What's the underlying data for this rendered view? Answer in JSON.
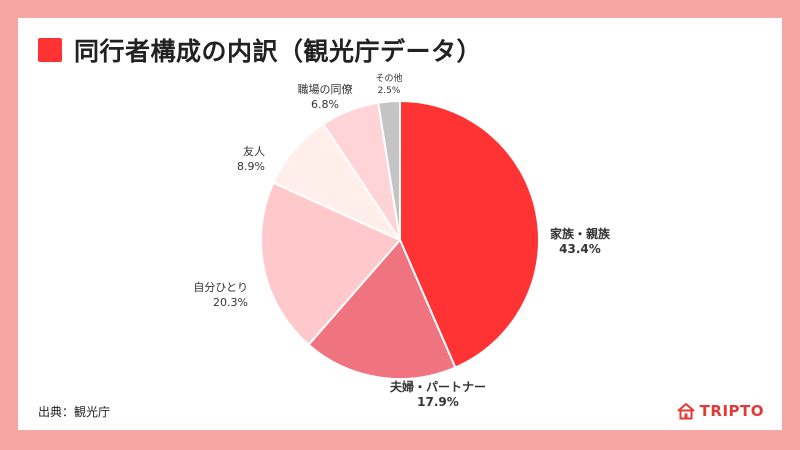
{
  "header": {
    "title": "同行者構成の内訳（観光庁データ）"
  },
  "footer": {
    "source": "出典：観光庁",
    "brand": "TRIPTO"
  },
  "colors": {
    "background": "#f8a5a5",
    "accent": "#ff3333",
    "brand": "#e53935"
  },
  "icons": {
    "brand": "house-icon"
  },
  "chart_data": {
    "type": "pie",
    "title": "同行者構成の内訳（観光庁データ）",
    "start": "12 o'clock",
    "direction": "clockwise",
    "slices": [
      {
        "label": "家族・親族",
        "value": 43.4,
        "value_label": "43.4%",
        "color": "#ff3333"
      },
      {
        "label": "夫婦・パートナー",
        "value": 17.9,
        "value_label": "17.9%",
        "color": "#f07480"
      },
      {
        "label": "自分ひとり",
        "value": 20.3,
        "value_label": "20.3%",
        "color": "#ffc9cc"
      },
      {
        "label": "友人",
        "value": 8.9,
        "value_label": "8.9%",
        "color": "#ffeeea"
      },
      {
        "label": "職場の同僚",
        "value": 6.8,
        "value_label": "6.8%",
        "color": "#ffd4d8"
      },
      {
        "label": "その他",
        "value": 2.5,
        "value_label": "2.5%",
        "color": "#c4c4c4"
      }
    ]
  }
}
